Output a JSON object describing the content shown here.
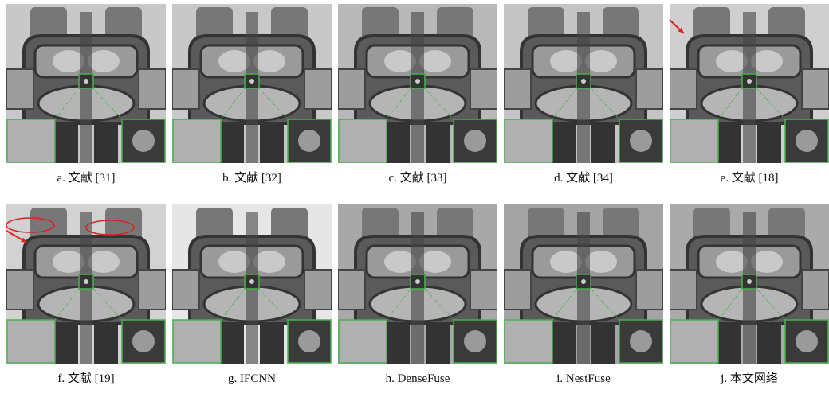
{
  "panels": [
    {
      "caption": "a. 文献 [31]"
    },
    {
      "caption": "b. 文献 [32]"
    },
    {
      "caption": "c. 文献 [33]"
    },
    {
      "caption": "d. 文献 [34]"
    },
    {
      "caption": "e. 文献 [18]"
    },
    {
      "caption": "f. 文献 [19]"
    },
    {
      "caption": "g. IFCNN"
    },
    {
      "caption": "h. DenseFuse"
    },
    {
      "caption": "i. NestFuse"
    },
    {
      "caption": "j. 本文网络"
    }
  ]
}
